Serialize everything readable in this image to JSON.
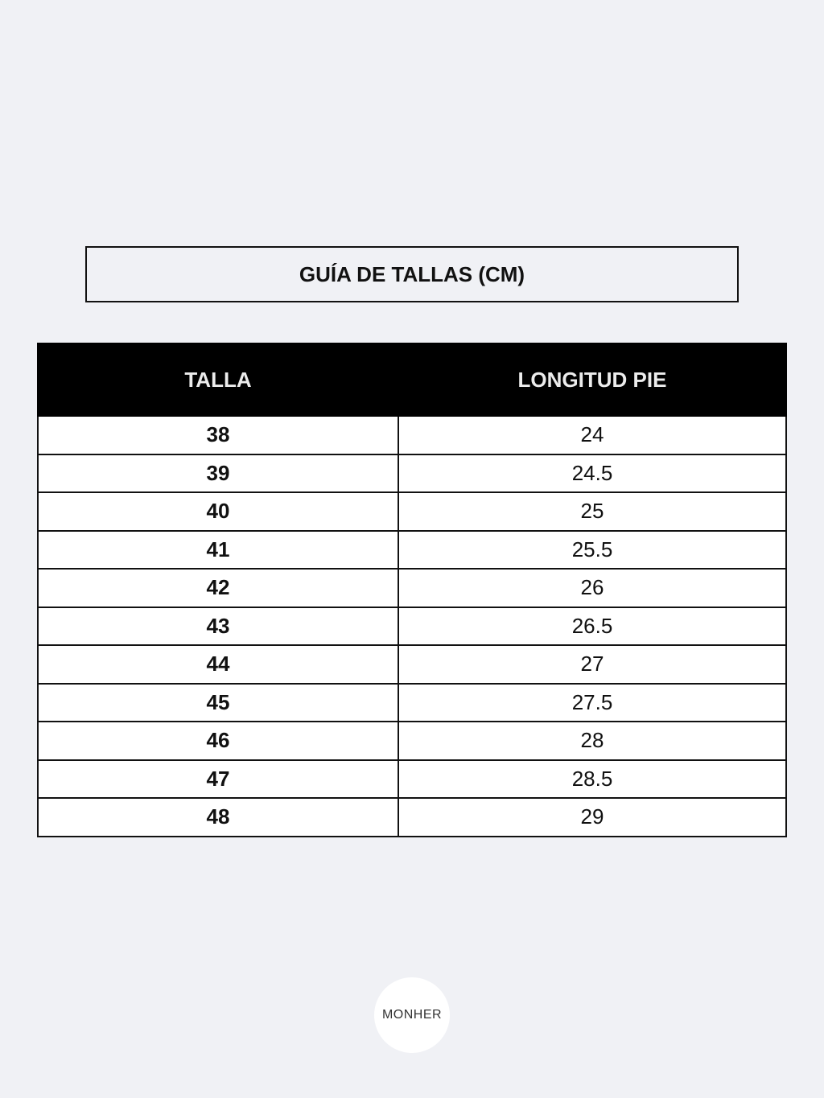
{
  "title": "GUÍA DE TALLAS (CM)",
  "table": {
    "headers": [
      "TALLA",
      "LONGITUD PIE"
    ],
    "rows": [
      [
        "38",
        "24"
      ],
      [
        "39",
        "24.5"
      ],
      [
        "40",
        "25"
      ],
      [
        "41",
        "25.5"
      ],
      [
        "42",
        "26"
      ],
      [
        "43",
        "26.5"
      ],
      [
        "44",
        "27"
      ],
      [
        "45",
        "27.5"
      ],
      [
        "46",
        "28"
      ],
      [
        "47",
        "28.5"
      ],
      [
        "48",
        "29"
      ]
    ]
  },
  "logo": "MONHER",
  "colors": {
    "background": "#f0f1f5",
    "header": "#000000"
  }
}
